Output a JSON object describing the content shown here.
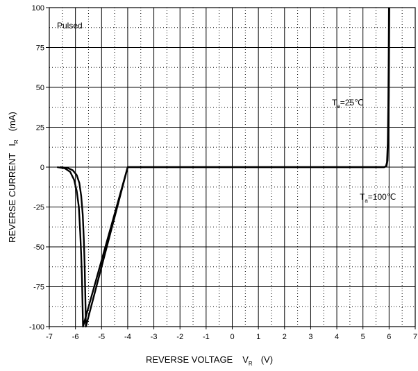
{
  "chart_data": {
    "type": "line",
    "title": "",
    "xlabel": {
      "main": "REVERSE VOLTAGE",
      "symbol": "V",
      "sub": "R",
      "unit": "(V)"
    },
    "ylabel": {
      "main": "REVERSE CURRENT",
      "symbol": "I",
      "sub": "R",
      "unit": "(mA)"
    },
    "xlim": [
      -7,
      7
    ],
    "ylim": [
      -100,
      100
    ],
    "x_ticks": [
      "-7",
      "-6",
      "-5",
      "-4",
      "-3",
      "-2",
      "-1",
      "0",
      "1",
      "2",
      "3",
      "4",
      "5",
      "6",
      "7"
    ],
    "y_ticks": [
      "100",
      "75",
      "50",
      "25",
      "0",
      "-25",
      "-50",
      "-75",
      "-100"
    ],
    "grid": "major solid, minor dotted",
    "annotations": {
      "pulsed": "Pulsed",
      "ta25": {
        "pre": "T",
        "sub": "a",
        "post": "=25℃"
      },
      "ta100": {
        "pre": "T",
        "sub": "a",
        "post": "=100℃"
      }
    },
    "series": [
      {
        "points": [
          [
            -6.6,
            0
          ],
          [
            -6.3,
            -0.5
          ],
          [
            -6.1,
            -2
          ],
          [
            -5.95,
            -5
          ],
          [
            -5.85,
            -10
          ],
          [
            -5.78,
            -18
          ],
          [
            -5.72,
            -30
          ],
          [
            -5.68,
            -45
          ],
          [
            -5.65,
            -60
          ],
          [
            -5.63,
            -75
          ],
          [
            -5.61,
            -90
          ],
          [
            -5.6,
            -100
          ],
          [
            -4,
            0
          ],
          [
            0,
            0
          ],
          [
            4,
            0
          ],
          [
            5.8,
            0
          ],
          [
            5.88,
            0.5
          ],
          [
            5.92,
            3
          ],
          [
            5.95,
            15
          ],
          [
            5.97,
            40
          ],
          [
            5.985,
            70
          ],
          [
            5.995,
            100
          ]
        ]
      },
      {
        "points": [
          [
            -6.7,
            0
          ],
          [
            -6.4,
            -0.8
          ],
          [
            -6.2,
            -3
          ],
          [
            -6.05,
            -8
          ],
          [
            -5.95,
            -15
          ],
          [
            -5.87,
            -25
          ],
          [
            -5.82,
            -40
          ],
          [
            -5.78,
            -55
          ],
          [
            -5.75,
            -70
          ],
          [
            -5.73,
            -85
          ],
          [
            -5.71,
            -100
          ],
          [
            -4,
            0
          ],
          [
            0,
            0
          ],
          [
            4,
            0
          ],
          [
            5.82,
            0
          ],
          [
            5.9,
            0.6
          ],
          [
            5.94,
            4
          ],
          [
            5.97,
            18
          ],
          [
            5.99,
            45
          ],
          [
            6.0,
            75
          ],
          [
            6.01,
            100
          ]
        ]
      }
    ]
  }
}
